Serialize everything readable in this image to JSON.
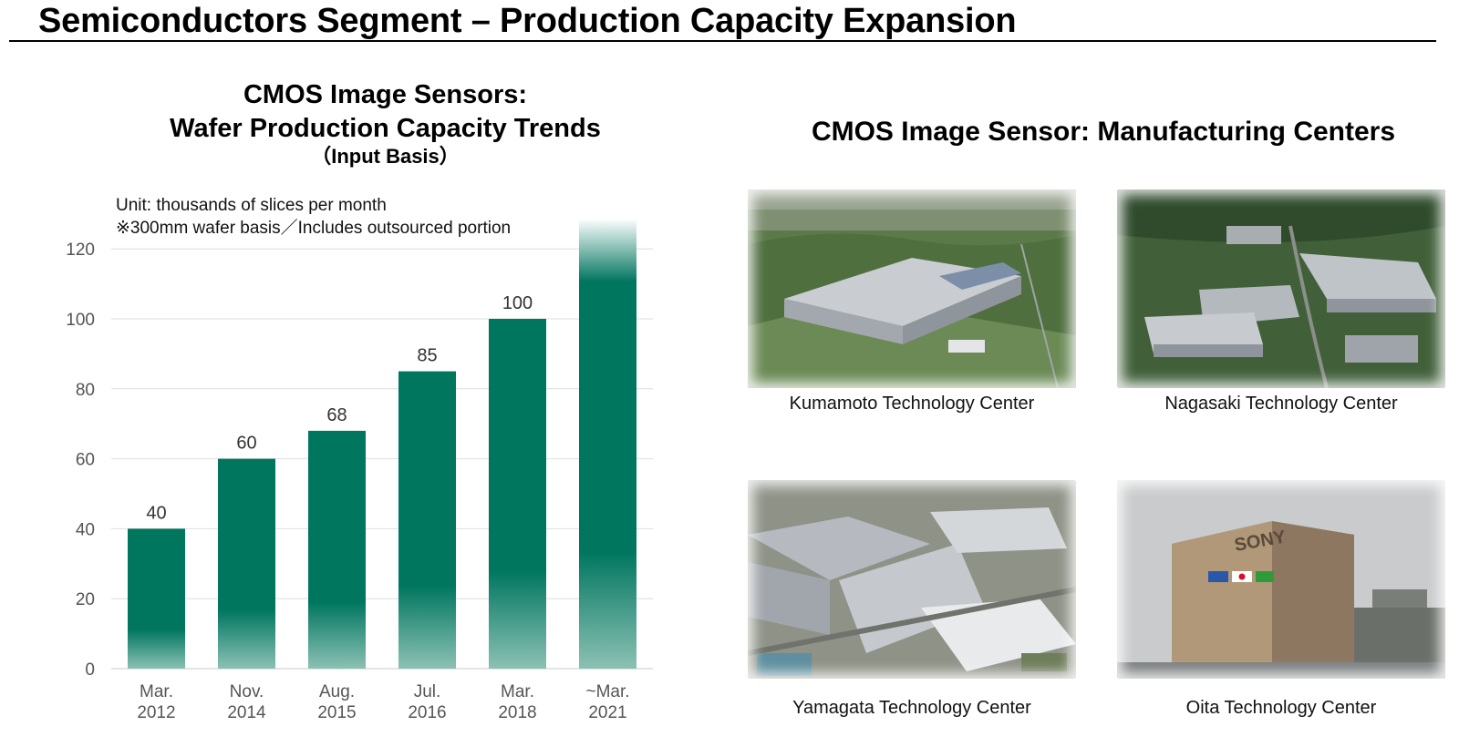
{
  "page": {
    "title": "Semiconductors Segment – Production Capacity Expansion"
  },
  "chart_data": {
    "type": "bar",
    "title_lines": [
      "CMOS Image Sensors:",
      "Wafer Production Capacity Trends",
      "（Input Basis）"
    ],
    "notes": [
      "Unit: thousands of slices per month",
      "※300mm wafer basis／Includes outsourced portion"
    ],
    "categories": [
      [
        "Mar.",
        "2012"
      ],
      [
        "Nov.",
        "2014"
      ],
      [
        "Aug.",
        "2015"
      ],
      [
        "Jul.",
        "2016"
      ],
      [
        "Mar.",
        "2018"
      ],
      [
        "~Mar.",
        "2021"
      ]
    ],
    "values": [
      40,
      60,
      68,
      85,
      100,
      128
    ],
    "data_labels": [
      "40",
      "60",
      "68",
      "85",
      "100",
      ""
    ],
    "last_bar_open_ended": true,
    "yticks": [
      0,
      20,
      40,
      60,
      80,
      100,
      120
    ],
    "ylim": [
      0,
      128
    ],
    "grid": true,
    "bar_color": "#00765f",
    "bar_fade_color": "#8cc1b4"
  },
  "centers": {
    "title": "CMOS Image Sensor:  Manufacturing Centers",
    "sites": [
      {
        "name": "Kumamoto Technology Center",
        "photo": "aerial-factory-photo"
      },
      {
        "name": "Nagasaki Technology Center",
        "photo": "aerial-factory-photo"
      },
      {
        "name": "Yamagata Technology Center",
        "photo": "aerial-factory-photo"
      },
      {
        "name": "Oita Technology Center",
        "photo": "building-facade-photo",
        "building_sign": "SONY"
      }
    ]
  }
}
